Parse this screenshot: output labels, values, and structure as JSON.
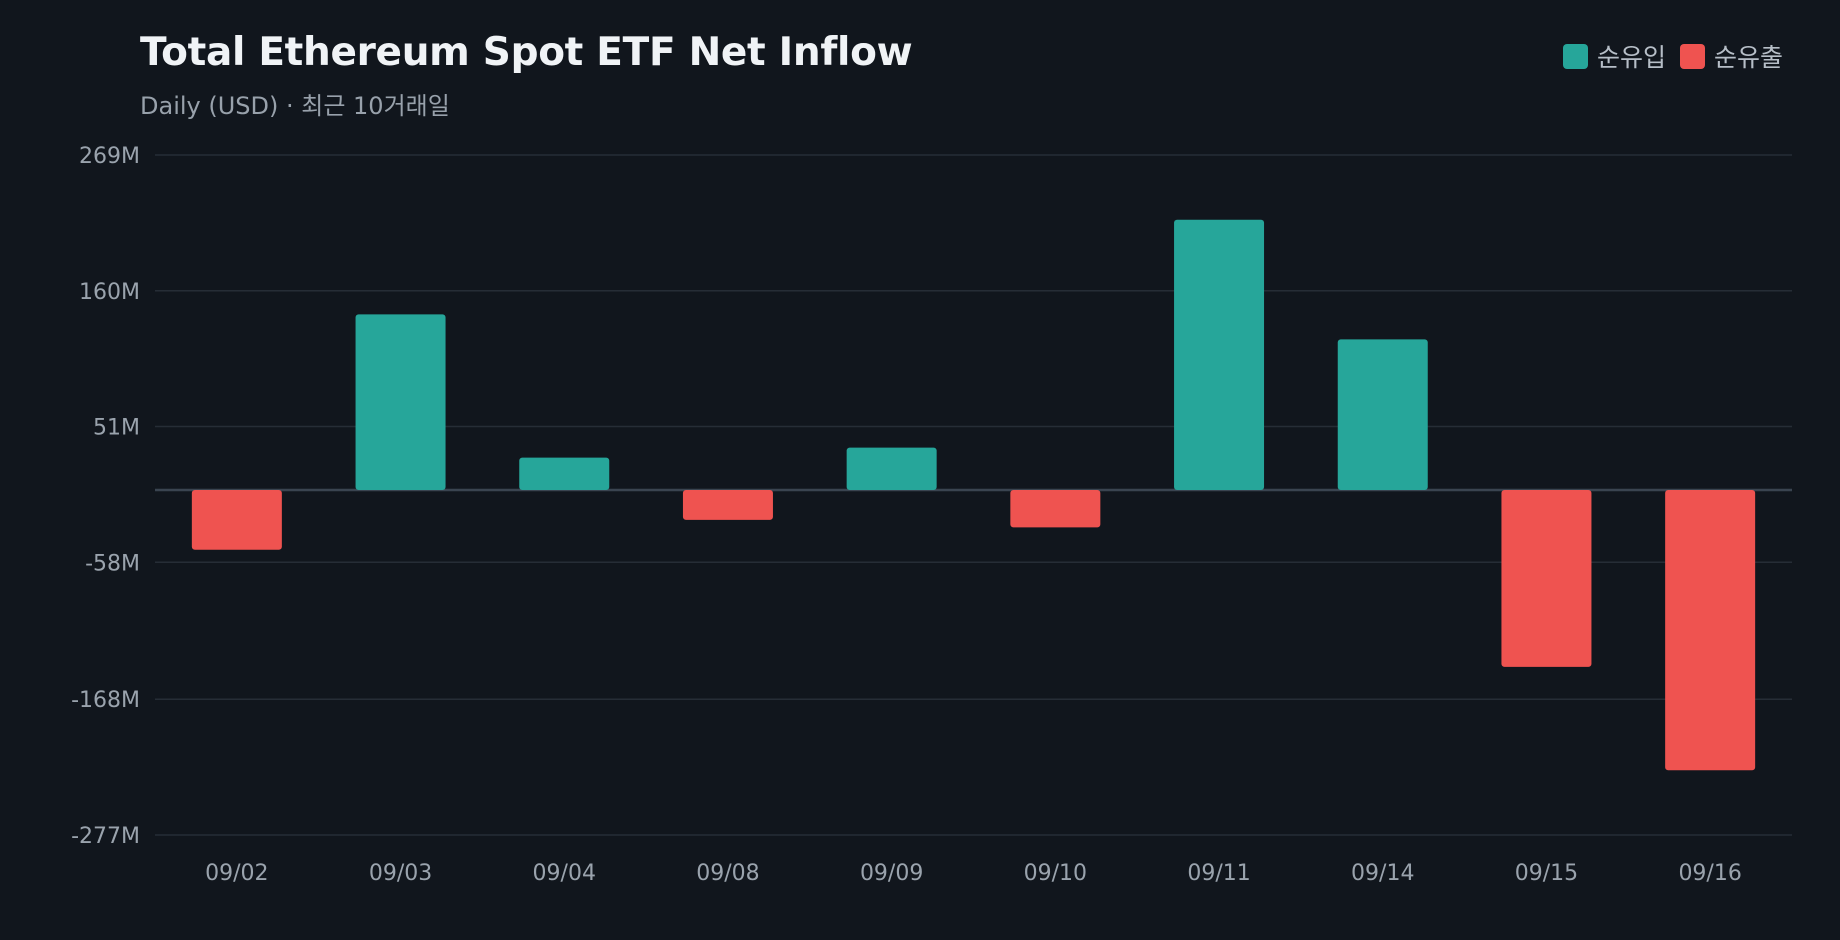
{
  "chart_data": {
    "type": "bar",
    "title": "Total Ethereum Spot ETF Net Inflow",
    "subtitle": "Daily (USD) · 최근 10거래일",
    "legend": [
      {
        "label": "순유입",
        "color": "#26a69a"
      },
      {
        "label": "순유출",
        "color": "#ef5350"
      }
    ],
    "legend_position": "top-right",
    "categories": [
      "09/02",
      "09/03",
      "09/04",
      "09/08",
      "09/09",
      "09/10",
      "09/11",
      "09/14",
      "09/15",
      "09/16"
    ],
    "values": [
      -48,
      141,
      26,
      -24,
      34,
      -30,
      217,
      121,
      -142,
      -225
    ],
    "y_ticks": [
      269,
      160,
      51,
      -58,
      -168,
      -277
    ],
    "y_tick_labels": [
      "269M",
      "160M",
      "51M",
      "-58M",
      "-168M",
      "-277M"
    ],
    "ylim": [
      -277,
      269
    ],
    "grid": true,
    "colors": {
      "background": "#11161d",
      "positive": "#26a69a",
      "negative": "#ef5350",
      "grid": "#262d36",
      "zero_line": "#3a4450"
    }
  }
}
